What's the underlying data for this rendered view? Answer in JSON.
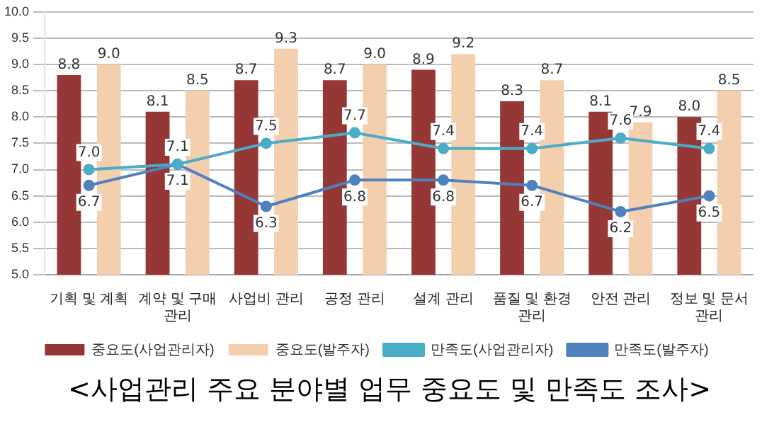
{
  "chart_data": {
    "type": "bar",
    "title": "<사업관리 주요 분야별 업무 중요도 및 만족도 조사>",
    "categories": [
      "기획 및 계획",
      "계약 및 구매 관리",
      "사업비 관리",
      "공정 관리",
      "설계 관리",
      "품질 및 환경 관리",
      "안전 관리",
      "정보 및 문서 관리"
    ],
    "series": [
      {
        "name": "중요도(사업관리자)",
        "color": "#953735",
        "values": [
          8.8,
          8.1,
          8.7,
          8.7,
          8.9,
          8.3,
          8.1,
          8.0
        ],
        "value_labels": [
          "8.8",
          "8.1",
          "8.7",
          "8.7",
          "8.9",
          "8.3",
          "8.1",
          "8.0"
        ]
      },
      {
        "name": "중요도(발주자)",
        "color": "#f4cfae",
        "values": [
          9.0,
          8.5,
          9.3,
          9.0,
          9.2,
          8.7,
          7.9,
          8.5
        ],
        "value_labels": [
          "9.0",
          "8.5",
          "9.3",
          "9.0",
          "9.2",
          "8.7",
          "7.9",
          "8.5"
        ]
      },
      {
        "name": "만족도(사업관리자)",
        "type": "line",
        "color": "#4bacc6",
        "values": [
          7.0,
          7.1,
          7.5,
          7.7,
          7.4,
          7.4,
          7.6,
          7.4
        ],
        "value_labels": [
          "7.0",
          "7.1",
          "7.5",
          "7.7",
          "7.4",
          "7.4",
          "7.6",
          "7.4"
        ]
      },
      {
        "name": "만족도(발주자)",
        "type": "line",
        "color": "#4f81bd",
        "values": [
          6.7,
          7.1,
          6.3,
          6.8,
          6.8,
          6.7,
          6.2,
          6.5
        ],
        "value_labels": [
          "6.7",
          "7.1",
          "6.3",
          "6.8",
          "6.8",
          "6.7",
          "6.2",
          "6.5"
        ]
      }
    ],
    "ylim": [
      5,
      10
    ],
    "yticks": [
      {
        "value": 5,
        "label": "5.0"
      },
      {
        "value": 5.5,
        "label": "5.5"
      },
      {
        "value": 6,
        "label": "6.0"
      },
      {
        "value": 6.5,
        "label": "6.5"
      },
      {
        "value": 7,
        "label": "7.0"
      },
      {
        "value": 7.5,
        "label": "7.5"
      },
      {
        "value": 8,
        "label": "8.0"
      },
      {
        "value": 8.5,
        "label": "8.5"
      },
      {
        "value": 9,
        "label": "9.0"
      },
      {
        "value": 9.5,
        "label": "9.5"
      },
      {
        "value": 10,
        "label": "10.0"
      }
    ],
    "grid": "y",
    "legend": "bottom",
    "marker": "circle",
    "line_style": "solid"
  }
}
